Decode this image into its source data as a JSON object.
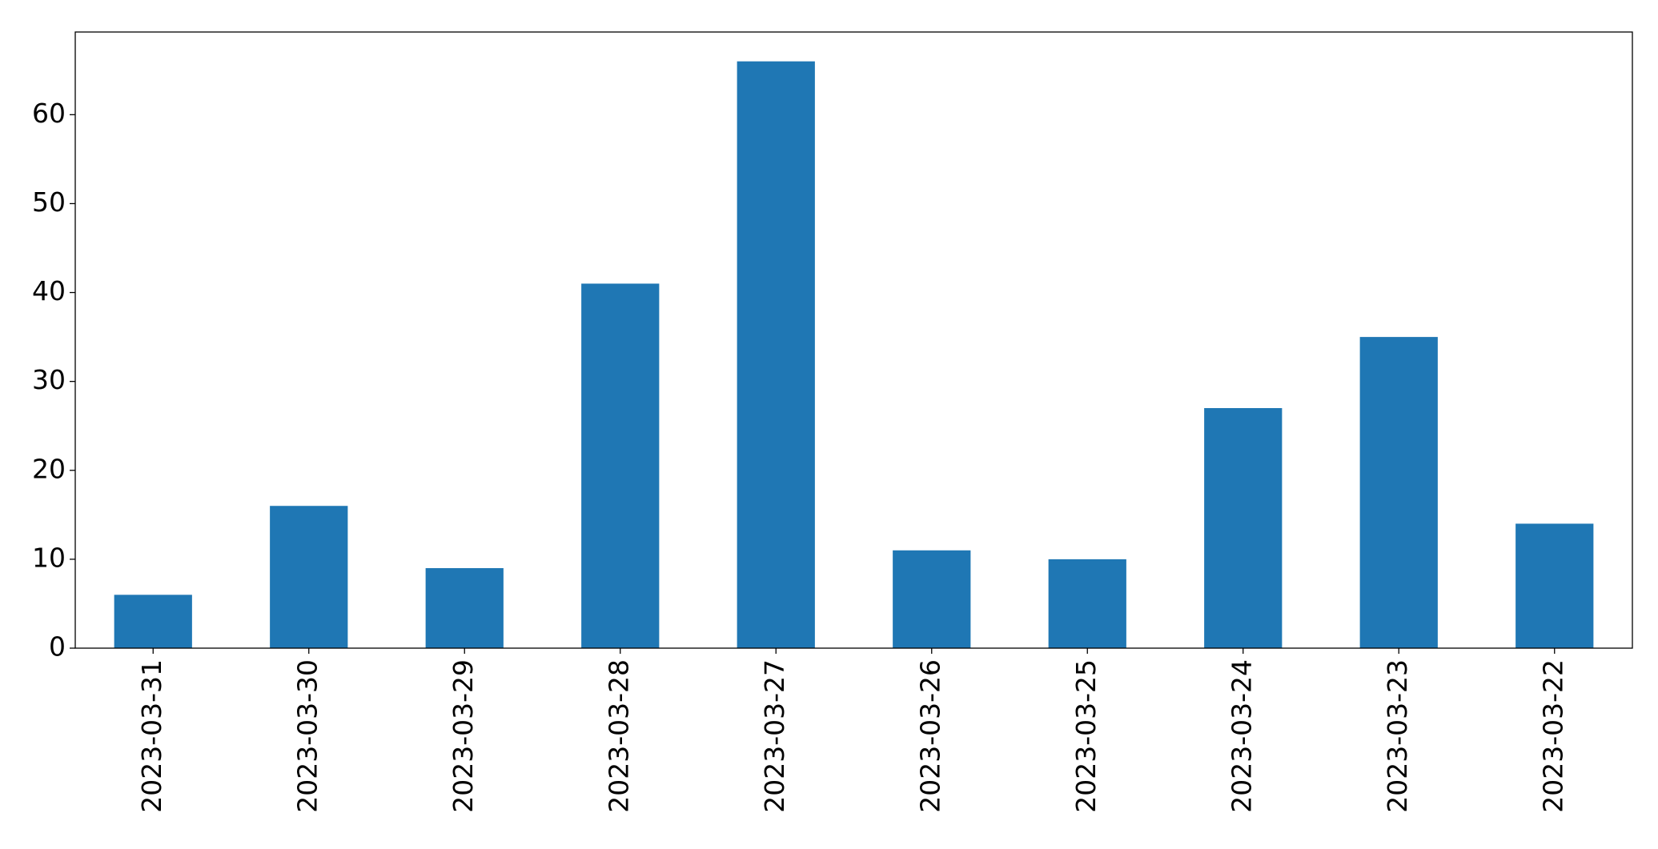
{
  "chart_data": {
    "type": "bar",
    "categories": [
      "2023-03-31",
      "2023-03-30",
      "2023-03-29",
      "2023-03-28",
      "2023-03-27",
      "2023-03-26",
      "2023-03-25",
      "2023-03-24",
      "2023-03-23",
      "2023-03-22"
    ],
    "values": [
      6,
      16,
      9,
      41,
      66,
      11,
      10,
      27,
      35,
      14
    ],
    "color": "#1f77b4",
    "ylim": [
      0,
      69.3
    ],
    "yticks": [
      0,
      10,
      20,
      30,
      40,
      50,
      60
    ],
    "grid": false
  }
}
